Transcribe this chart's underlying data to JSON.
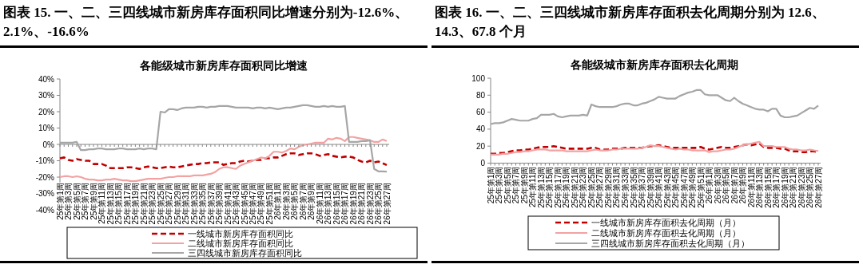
{
  "chart_data": [
    {
      "type": "line",
      "title": "图表 15. 一、二、三四线城市新房库存面积同比增速分别为-12.6%、2.1%、-16.6%",
      "subtitle": "各能级城市新房库存面积同比增速",
      "categories": [
        "25年第1周",
        null,
        "25年第3周",
        null,
        "25年第5周",
        null,
        "25年第7周",
        null,
        "25年第9周",
        null,
        "25年第11周",
        null,
        "25年第13周",
        null,
        "25年第15周",
        null,
        "25年第17周",
        null,
        "25年第19周",
        null,
        "25年第21周",
        null,
        "25年第23周",
        null,
        "25年第25周",
        null,
        "25年第27周",
        null,
        "25年第29周",
        null,
        "25年第31周",
        null,
        "25年第33周",
        null,
        "25年第35周",
        null,
        "25年第37周",
        null,
        "25年第39周",
        null,
        "25年第41周",
        null,
        "25年第43周",
        null,
        "25年第45周",
        null,
        "25年第47周",
        null,
        "25年第49周",
        null,
        "25年第51周",
        null,
        "26年第1周",
        null,
        "26年第3周",
        null,
        "26年第5周",
        null,
        "26年第7周",
        null,
        "26年第9周",
        null,
        "26年第11周",
        null,
        "26年第13周",
        null,
        "26年第15周",
        null,
        "26年第17周",
        null,
        "26年第19周",
        null,
        "26年第21周",
        null,
        "26年第23周",
        null,
        "26年第25周",
        null,
        "26年第27周"
      ],
      "series": [
        {
          "name": "一线城市新房库存面积同比",
          "color": "#c00000",
          "line_style": "dashed",
          "values": [
            -8.5,
            -8,
            -9.5,
            -10,
            -9,
            -9.5,
            -10,
            -10,
            -12,
            -12,
            -12,
            -13,
            -14.5,
            -14.5,
            -14.5,
            -14.5,
            -14,
            -14,
            -14.5,
            -15,
            -14,
            -13.5,
            -14,
            -14.5,
            -14.5,
            -14,
            -13.5,
            -14,
            -14,
            -13.5,
            -13,
            -12.5,
            -12,
            -12,
            -11.5,
            -11.5,
            -11,
            -11,
            -11,
            -12.5,
            -12,
            -11.5,
            -11.5,
            -10.5,
            -10,
            -10.5,
            -10,
            -9.5,
            -9.5,
            -8.5,
            -8.5,
            -8,
            -8,
            -7,
            -6,
            -5.5,
            -5.5,
            -6.5,
            -6,
            -5.5,
            -5.5,
            -6,
            -7,
            -6.5,
            -6,
            -7,
            -7.5,
            -8,
            -7.5,
            -7.5,
            -8,
            -9.5,
            -10.5,
            -11,
            -10,
            -11,
            -10.5,
            -11.5,
            -12.6
          ]
        },
        {
          "name": "二线城市新房库存面积同比",
          "color": "#f2a2a2",
          "line_style": "solid",
          "values": [
            -20,
            -19.5,
            -19.5,
            -20,
            -19.5,
            -20,
            -21,
            -21.5,
            -21.5,
            -22,
            -22,
            -21.5,
            -21.5,
            -21,
            -21.5,
            -22,
            -22,
            -22.5,
            -22.5,
            -22,
            -21.5,
            -21,
            -21,
            -21,
            -21,
            -20.5,
            -20,
            -20,
            -19.5,
            -19.5,
            -19.5,
            -19.5,
            -19,
            -19,
            -19,
            -18.5,
            -18,
            -17,
            -15,
            -14,
            -14,
            -14.5,
            -15,
            -13,
            -12,
            -11,
            -10,
            -9,
            -8,
            -8.5,
            -7,
            -4.5,
            -4.5,
            -5,
            -4,
            -2.5,
            -3,
            -1.5,
            -0.5,
            0,
            0.5,
            1,
            1,
            1,
            3.5,
            3,
            4,
            3.5,
            2,
            4.5,
            4.5,
            4,
            3.5,
            3,
            2.5,
            1.5,
            1.5,
            3,
            2.1
          ]
        },
        {
          "name": "三四线城市新房库存面积同比",
          "color": "#a6a6a6",
          "line_style": "solid",
          "values": [
            1,
            1,
            1,
            1,
            1.5,
            -3.5,
            -3.5,
            -3,
            -3,
            -2.5,
            -2.5,
            -3,
            -3,
            -3,
            -2.5,
            -2.5,
            -3,
            -3,
            -3,
            -2.5,
            -3,
            -2.5,
            -2.5,
            -3,
            20,
            19.5,
            21.5,
            21.5,
            21,
            22,
            22.5,
            22.5,
            22.5,
            23,
            23,
            22.5,
            23,
            23,
            23.5,
            23.5,
            23.5,
            23,
            22.5,
            22.5,
            22.5,
            22.5,
            22,
            22.5,
            22.5,
            22,
            22.5,
            22,
            21.5,
            22,
            22.5,
            22.5,
            23,
            23.5,
            24,
            24,
            23.5,
            23,
            23,
            23.5,
            23,
            23.5,
            23,
            23,
            23.5,
            1.5,
            1.5,
            1.5,
            2,
            2,
            2.5,
            -15,
            -16.5,
            -16.5,
            -16.6
          ]
        }
      ],
      "ylim": [
        -40,
        40
      ],
      "yticks": [
        {
          "value": -40,
          "label": "-40%"
        },
        {
          "value": -30,
          "label": "-30%"
        },
        {
          "value": -20,
          "label": "-20%"
        },
        {
          "value": -10,
          "label": "-10%"
        },
        {
          "value": 0,
          "label": "0%"
        },
        {
          "value": 10,
          "label": "10%"
        },
        {
          "value": 20,
          "label": "20%"
        },
        {
          "value": 30,
          "label": "30%"
        },
        {
          "value": 40,
          "label": "40%"
        }
      ],
      "legend": "bottom"
    },
    {
      "type": "line",
      "title": "图表 16. 一、二、三四线城市新房库存面积去化周期分别为 12.6、14.3、67.8 个月",
      "subtitle": "各能级城市新房库存面积去化周期",
      "categories": [
        "25年第1周",
        null,
        "25年第3周",
        null,
        "25年第5周",
        null,
        "25年第7周",
        null,
        "25年第9周",
        null,
        "25年第11周",
        null,
        "25年第13周",
        null,
        "25年第15周",
        null,
        "25年第17周",
        null,
        "25年第19周",
        null,
        "25年第21周",
        null,
        "25年第23周",
        null,
        "25年第25周",
        null,
        "25年第27周",
        null,
        "25年第29周",
        null,
        "25年第31周",
        null,
        "25年第33周",
        null,
        "25年第35周",
        null,
        "25年第37周",
        null,
        "25年第39周",
        null,
        "25年第41周",
        null,
        "25年第43周",
        null,
        "25年第45周",
        null,
        "25年第47周",
        null,
        "25年第49周",
        null,
        "25年第51周",
        null,
        "26年第1周",
        null,
        "26年第3周",
        null,
        "26年第5周",
        null,
        "26年第7周",
        null,
        "26年第9周",
        null,
        "26年第11周",
        null,
        "26年第13周",
        null,
        "26年第15周",
        null,
        "26年第17周",
        null,
        "26年第19周",
        null,
        "26年第21周",
        null,
        "26年第23周",
        null,
        "26年第25周",
        null,
        "26年第27周"
      ],
      "series": [
        {
          "name": "一线城市新房库存面积去化周期（月）",
          "color": "#c00000",
          "line_style": "dashed",
          "values": [
            11,
            11,
            12,
            12,
            13,
            14,
            15,
            15,
            16,
            16,
            17,
            18,
            19,
            19,
            19,
            20,
            19,
            18,
            17,
            17,
            17,
            17,
            17,
            17,
            18,
            18,
            16,
            16,
            16,
            17,
            17,
            17,
            18,
            18,
            18,
            18,
            18,
            19,
            20,
            20,
            21,
            20,
            19,
            18,
            18,
            18,
            18,
            18,
            18,
            18,
            19,
            17,
            16,
            17,
            18,
            19,
            18,
            18,
            19,
            20,
            21,
            22,
            21,
            22,
            23,
            19,
            18,
            18,
            18,
            17,
            17,
            15,
            14,
            14,
            13,
            13,
            14,
            14,
            12.6
          ]
        },
        {
          "name": "二线城市新房库存面积去化周期（月）",
          "color": "#f2a2a2",
          "line_style": "solid",
          "values": [
            10,
            10,
            10,
            11,
            11,
            12,
            13,
            13,
            14,
            14,
            15,
            16,
            16,
            16,
            15,
            15,
            15,
            15,
            14,
            14,
            14,
            14,
            14,
            14,
            15,
            16,
            15,
            15,
            15,
            16,
            16,
            17,
            17,
            17,
            17,
            17,
            18,
            19,
            21,
            20,
            20,
            19,
            18,
            17,
            16,
            17,
            16,
            16,
            15,
            15,
            15,
            15,
            13,
            14,
            14,
            15,
            16,
            16,
            17,
            19,
            21,
            22,
            23,
            24,
            25,
            20,
            20,
            20,
            19,
            19,
            19,
            17,
            16,
            16,
            15,
            15,
            16,
            15,
            14.3
          ]
        },
        {
          "name": "三四线城市新房库存面积去化周期（月）",
          "color": "#a6a6a6",
          "line_style": "solid",
          "values": [
            46,
            47,
            47,
            48,
            50,
            52,
            51,
            50,
            50,
            50,
            52,
            53,
            57,
            57,
            57,
            58,
            55,
            54,
            55,
            56,
            56,
            56,
            57,
            56,
            69,
            67,
            66,
            66,
            66,
            66,
            67,
            69,
            70,
            70,
            68,
            68,
            70,
            71,
            73,
            75,
            78,
            77,
            76,
            76,
            76,
            79,
            81,
            83,
            84,
            86,
            86,
            81,
            80,
            80,
            80,
            77,
            74,
            73,
            77,
            73,
            70,
            68,
            66,
            64,
            63,
            63,
            61,
            64,
            64,
            56,
            54,
            54,
            55,
            56,
            59,
            62,
            65,
            64,
            67.8
          ]
        }
      ],
      "ylim": [
        0,
        100
      ],
      "yticks": [
        0,
        20,
        40,
        60,
        80,
        100
      ],
      "legend": "bottom"
    }
  ]
}
